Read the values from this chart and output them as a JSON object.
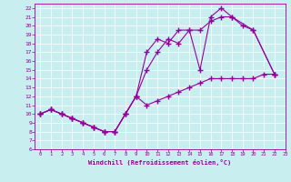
{
  "xlabel": "Windchill (Refroidissement éolien,°C)",
  "bg_color": "#c8eef0",
  "line_color": "#990099",
  "grid_color": "#ffffff",
  "axis_color": "#660066",
  "xlim": [
    -0.5,
    23
  ],
  "ylim": [
    6,
    22.5
  ],
  "xticks": [
    0,
    1,
    2,
    3,
    4,
    5,
    6,
    7,
    8,
    9,
    10,
    11,
    12,
    13,
    14,
    15,
    16,
    17,
    18,
    19,
    20,
    21,
    22,
    23
  ],
  "yticks": [
    6,
    7,
    8,
    9,
    10,
    11,
    12,
    13,
    14,
    15,
    16,
    17,
    18,
    19,
    20,
    21,
    22
  ],
  "line1_x": [
    0,
    1,
    2,
    3,
    4,
    5,
    6,
    7,
    8,
    9,
    10,
    11,
    12,
    13,
    14,
    15,
    16,
    17,
    18,
    19,
    20,
    21,
    22
  ],
  "line1_y": [
    10,
    10.5,
    10,
    9.5,
    9,
    8.5,
    8,
    8,
    10,
    12,
    11,
    11.5,
    12,
    12.5,
    13,
    13.5,
    14,
    14,
    14,
    14,
    14,
    14.5,
    14.5
  ],
  "line2_x": [
    0,
    1,
    2,
    3,
    4,
    5,
    6,
    7,
    8,
    9,
    10,
    11,
    12,
    13,
    14,
    15,
    16,
    17,
    18,
    20,
    22
  ],
  "line2_y": [
    10,
    10.5,
    10,
    9.5,
    9,
    8.5,
    8,
    8,
    10,
    12,
    17,
    18.5,
    18,
    19.5,
    19.5,
    15,
    21,
    22,
    21,
    19.5,
    14.5
  ],
  "line3_x": [
    0,
    1,
    2,
    3,
    4,
    5,
    6,
    7,
    8,
    9,
    10,
    11,
    12,
    13,
    14,
    15,
    16,
    17,
    18,
    19,
    20,
    22
  ],
  "line3_y": [
    10,
    10.5,
    10,
    9.5,
    9,
    8.5,
    8,
    8,
    10,
    12,
    15,
    17,
    18.5,
    18,
    19.5,
    19.5,
    20.5,
    21,
    21,
    20,
    19.5,
    14.5
  ]
}
